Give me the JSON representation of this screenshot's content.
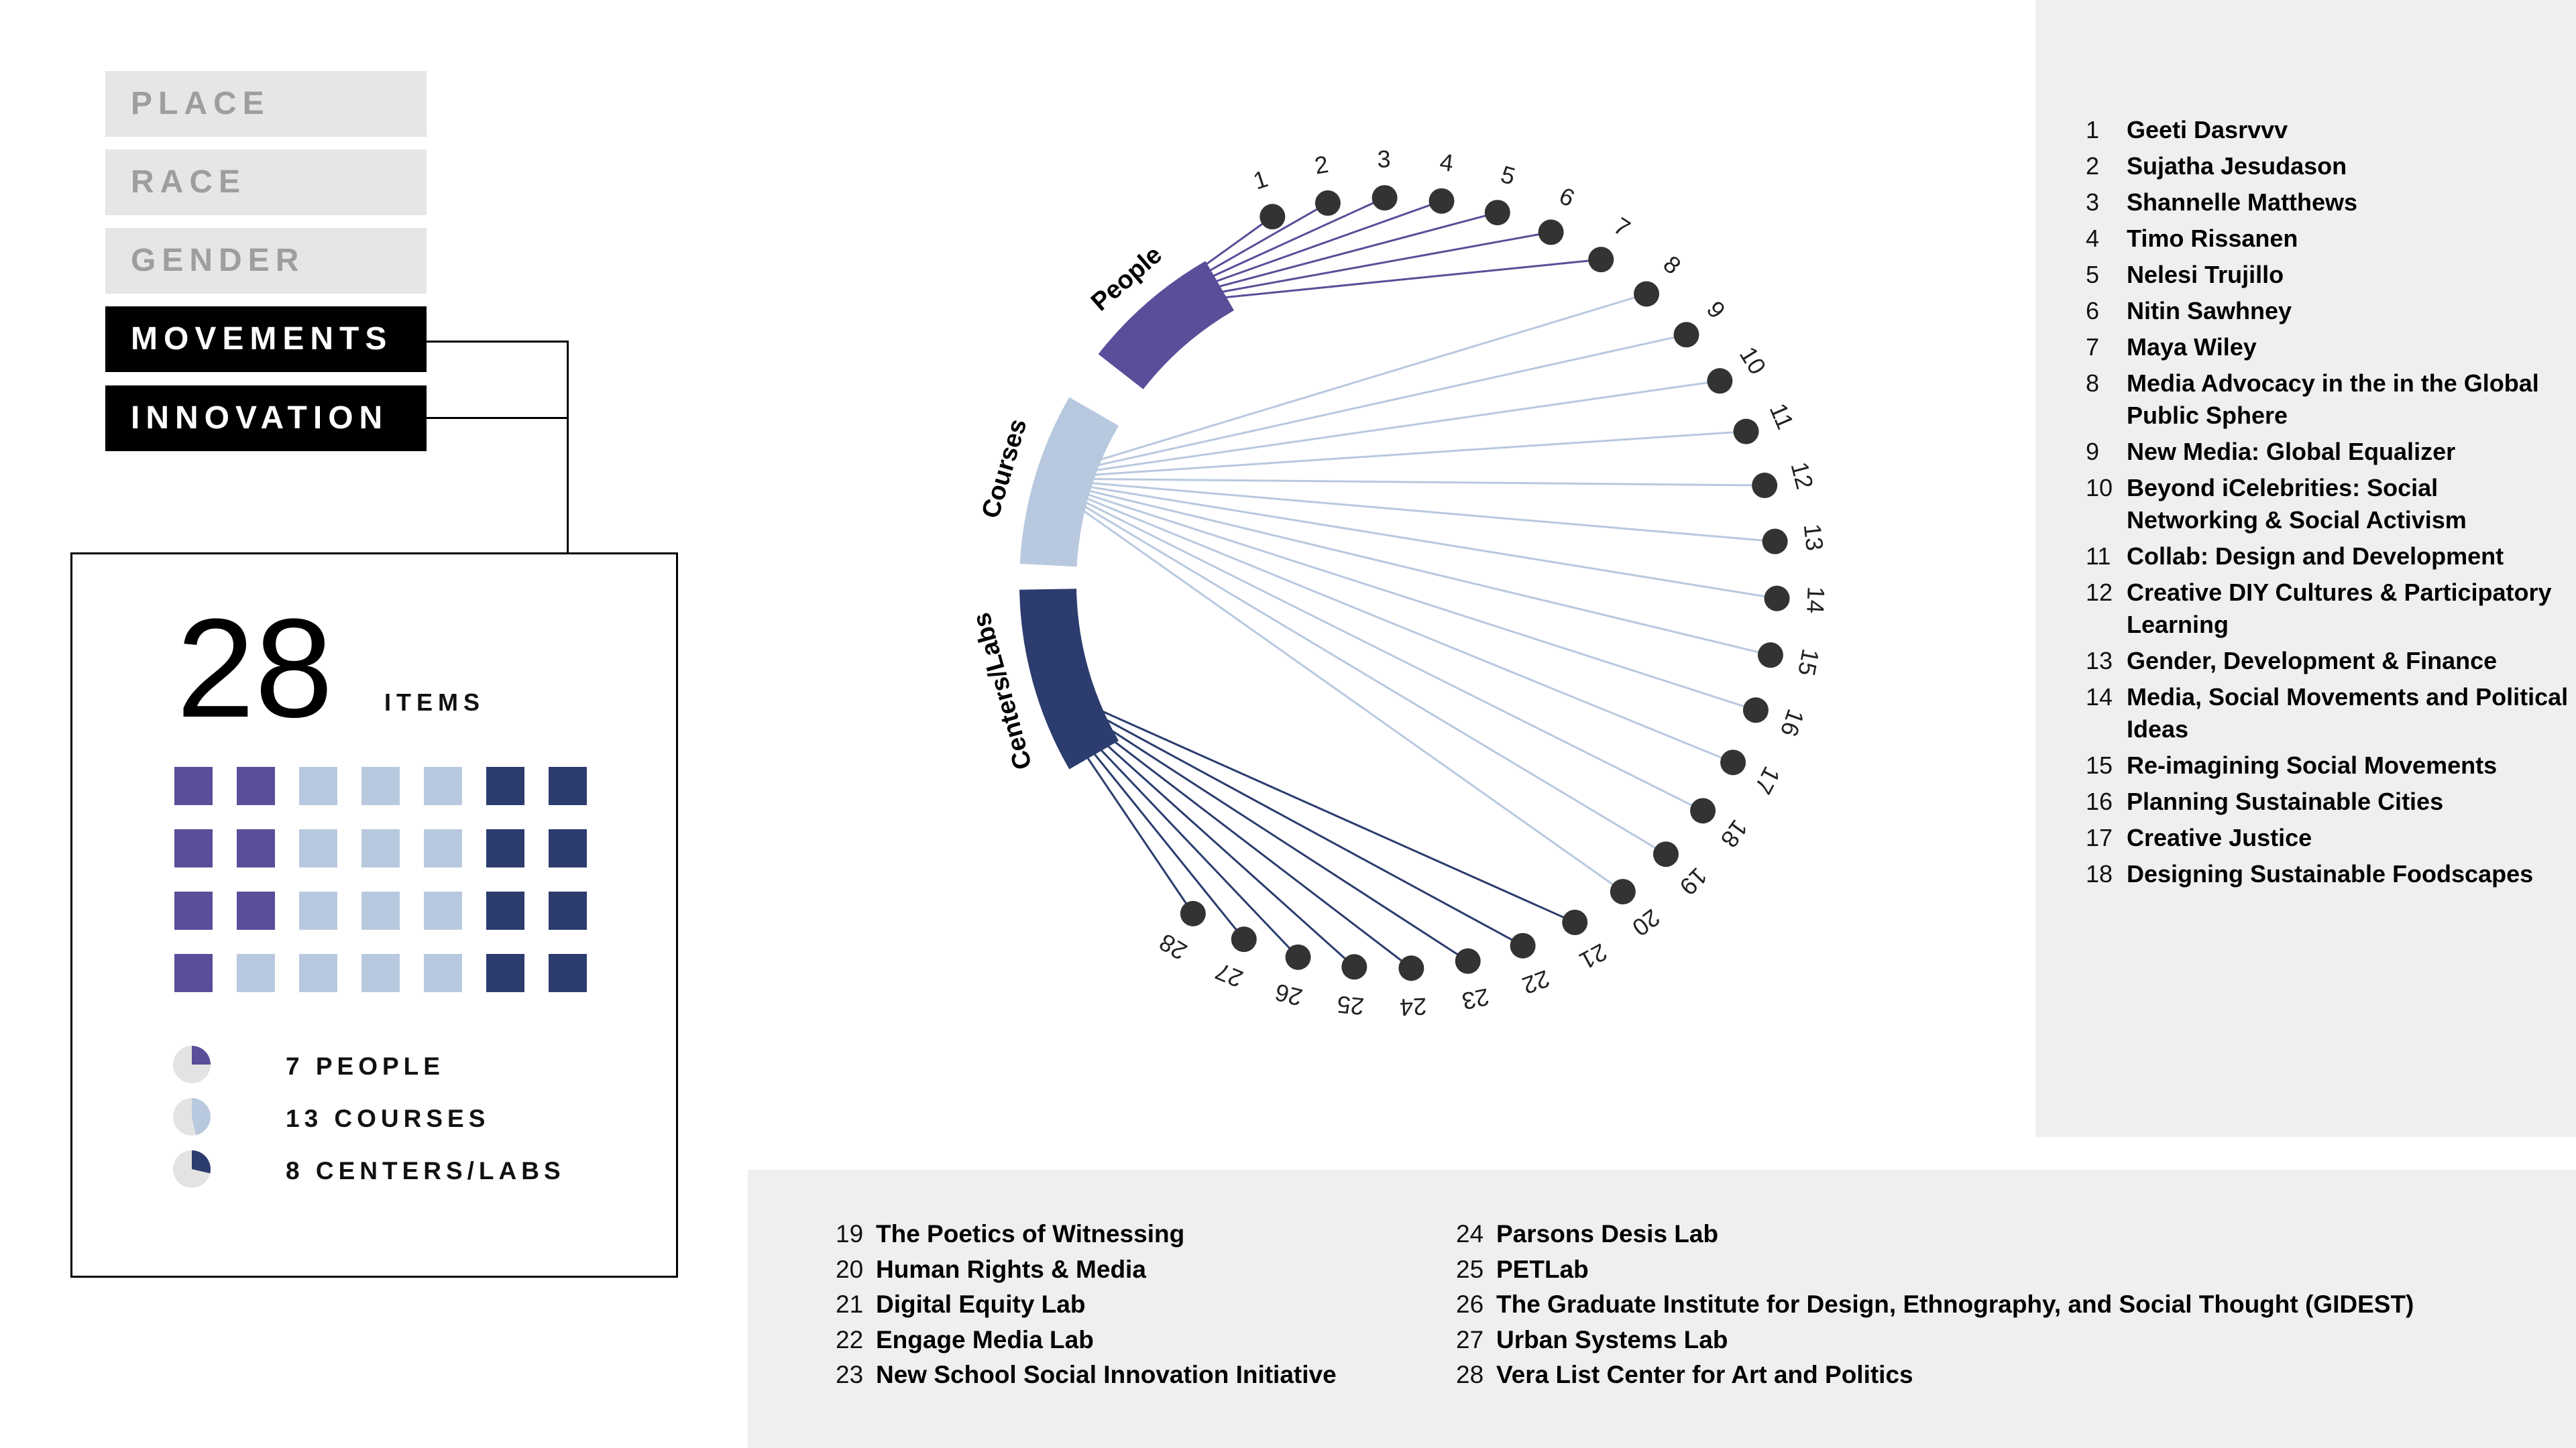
{
  "categories": [
    {
      "label": "PLACE",
      "active": false
    },
    {
      "label": "RACE",
      "active": false
    },
    {
      "label": "GENDER",
      "active": false
    },
    {
      "label": "MOVEMENTS",
      "active": true
    },
    {
      "label": "INNOVATION",
      "active": true
    }
  ],
  "summary": {
    "count": "28",
    "count_label": "ITEMS",
    "legend": [
      {
        "label": "7 PEOPLE",
        "value": 7,
        "color": "#5b4d99"
      },
      {
        "label": "13 COURSES",
        "value": 13,
        "color": "#b8c9df"
      },
      {
        "label": "8 CENTERS/LABS",
        "value": 8,
        "color": "#2c3c6e"
      }
    ],
    "total": 28
  },
  "colors": {
    "people": "#5b4d99",
    "courses": "#b8c9df",
    "centers": "#2c3c6e",
    "node": "#333333",
    "pie_bg": "#e3e3e3"
  },
  "chart_data": {
    "type": "radial-network",
    "groups": [
      {
        "label": "People",
        "color": "#5b4d99",
        "members": [
          1,
          2,
          3,
          4,
          5,
          6,
          7
        ]
      },
      {
        "label": "Courses",
        "color": "#b8c9df",
        "members": [
          8,
          9,
          10,
          11,
          12,
          13,
          14,
          15,
          16,
          17,
          18,
          19,
          20
        ]
      },
      {
        "label": "Centers/Labs",
        "color": "#2c3c6e",
        "members": [
          21,
          22,
          23,
          24,
          25,
          26,
          27,
          28
        ]
      }
    ],
    "nodes": [
      "1",
      "2",
      "3",
      "4",
      "5",
      "6",
      "7",
      "8",
      "9",
      "10",
      "11",
      "12",
      "13",
      "14",
      "15",
      "16",
      "17",
      "18",
      "19",
      "20",
      "21",
      "22",
      "23",
      "24",
      "25",
      "26",
      "27",
      "28"
    ]
  },
  "right_list": [
    {
      "num": "1",
      "text": "Geeti Dasrvvv"
    },
    {
      "num": "2",
      "text": "Sujatha Jesudason"
    },
    {
      "num": "3",
      "text": "Shannelle Matthews"
    },
    {
      "num": "4",
      "text": "Timo Rissanen"
    },
    {
      "num": "5",
      "text": "Nelesi Trujillo"
    },
    {
      "num": "6",
      "text": "Nitin Sawhney"
    },
    {
      "num": "7",
      "text": "Maya Wiley"
    },
    {
      "num": "8",
      "text": "Media Advocacy in the in the Global Public Sphere"
    },
    {
      "num": "9",
      "text": "New Media: Global Equalizer"
    },
    {
      "num": "10",
      "text": "Beyond iCelebrities: Social Networking & Social Activism"
    },
    {
      "num": "11",
      "text": "Collab: Design and Development"
    },
    {
      "num": "12",
      "text": "Creative DIY Cultures & Participatory Learning"
    },
    {
      "num": "13",
      "text": "Gender, Development & Finance"
    },
    {
      "num": "14",
      "text": "Media, Social Movements and Political Ideas"
    },
    {
      "num": "15",
      "text": "Re-imagining Social Movements"
    },
    {
      "num": "16",
      "text": "Planning Sustainable Cities"
    },
    {
      "num": "17",
      "text": "Creative Justice"
    },
    {
      "num": "18",
      "text": "Designing Sustainable Foodscapes"
    }
  ],
  "bottom_list": [
    [
      {
        "num": "19",
        "text": "The Poetics of Witnessing"
      },
      {
        "num": "20",
        "text": "Human Rights & Media"
      },
      {
        "num": "21",
        "text": "Digital Equity Lab"
      },
      {
        "num": "22",
        "text": "Engage Media Lab"
      },
      {
        "num": "23",
        "text": "New School Social Innovation Initiative"
      }
    ],
    [
      {
        "num": "24",
        "text": "Parsons Desis Lab"
      },
      {
        "num": "25",
        "text": "PETLab"
      },
      {
        "num": "26",
        "text": "The Graduate Institute for Design, Ethnography, and Social Thought (GIDEST)"
      },
      {
        "num": "27",
        "text": "Urban Systems Lab"
      },
      {
        "num": "28",
        "text": "Vera List Center for Art and Politics"
      }
    ]
  ]
}
